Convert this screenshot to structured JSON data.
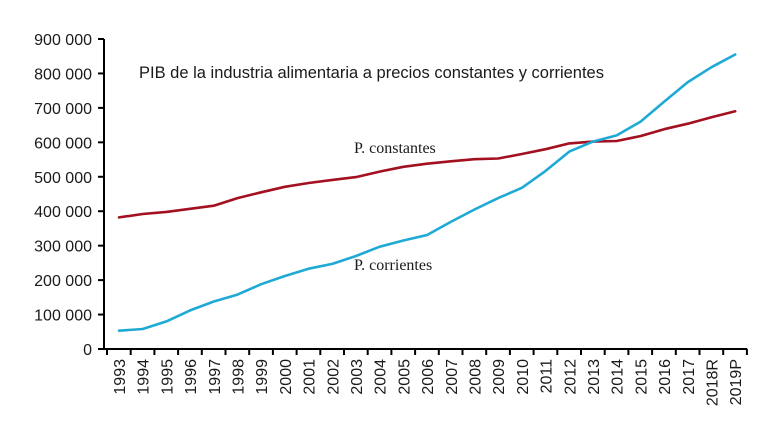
{
  "chart_data": {
    "type": "line",
    "title": "PIB de la industria alimentaria a precios constantes y corrientes",
    "xlabel": "",
    "ylabel": "",
    "ylim": [
      0,
      900000
    ],
    "yticks": [
      0,
      100000,
      200000,
      300000,
      400000,
      500000,
      600000,
      700000,
      800000,
      900000
    ],
    "ytick_labels": [
      "0",
      "100 000",
      "200 000",
      "300 000",
      "400 000",
      "500 000",
      "600 000",
      "700 000",
      "800 000",
      "900 000"
    ],
    "categories": [
      "1993",
      "1994",
      "1995",
      "1996",
      "1997",
      "1998",
      "1999",
      "2000",
      "2001",
      "2002",
      "2003",
      "2004",
      "2005",
      "2006",
      "2007",
      "2008",
      "2009",
      "2010",
      "2011",
      "2012",
      "2013",
      "2014",
      "2015",
      "2016",
      "2017",
      "2018R",
      "2019P"
    ],
    "grid": false,
    "legend": "none (inline series labels)",
    "series": [
      {
        "name": "P. constantes",
        "color": "#A31020",
        "values": [
          382000,
          392000,
          398000,
          407000,
          416000,
          438000,
          455000,
          471000,
          482000,
          491000,
          499000,
          515000,
          529000,
          538000,
          545000,
          551000,
          553000,
          566000,
          580000,
          597000,
          602000,
          604000,
          618000,
          638000,
          654000,
          673000,
          690000
        ]
      },
      {
        "name": "P. corrientes",
        "color": "#1FAAD6",
        "values": [
          53000,
          58000,
          80000,
          112000,
          138000,
          158000,
          188000,
          212000,
          233000,
          247000,
          270000,
          297000,
          315000,
          331000,
          369000,
          405000,
          438000,
          468000,
          517000,
          573000,
          602000,
          620000,
          660000,
          718000,
          775000,
          818000,
          855000
        ]
      }
    ]
  }
}
